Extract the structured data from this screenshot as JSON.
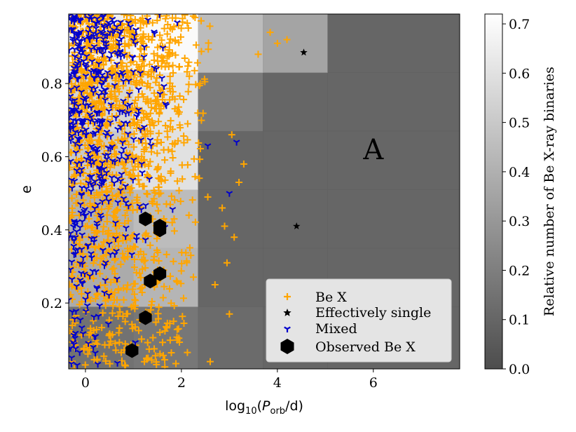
{
  "chart_data": {
    "type": "scatter",
    "xlabel": "log10(Porb/d)",
    "xlabel_parts": {
      "prefix": "log",
      "base": "10",
      "open": "(",
      "var": "P",
      "sub": "orb",
      "unit": "/d)"
    },
    "ylabel": "e",
    "xlim": [
      -0.35,
      7.8
    ],
    "ylim": [
      0.02,
      0.99
    ],
    "xticks": [
      0,
      2,
      4,
      6
    ],
    "xtick_labels": [
      "0",
      "2",
      "4",
      "6"
    ],
    "yticks": [
      0.2,
      0.4,
      0.6,
      0.8
    ],
    "ytick_labels": [
      "0.2",
      "0.4",
      "0.6",
      "0.8"
    ],
    "annotation": "A",
    "annotation_pos": {
      "x": 6.0,
      "y": 0.62
    },
    "legend_position": "lower-right",
    "colorbar": {
      "label": "Relative number of Be X-ray binaries",
      "range": [
        0.0,
        0.72
      ],
      "ticks": [
        0.0,
        0.1,
        0.2,
        0.3,
        0.4,
        0.5,
        0.6,
        0.7
      ],
      "tick_labels": [
        "0.0",
        "0.1",
        "0.2",
        "0.3",
        "0.4",
        "0.5",
        "0.6",
        "0.7"
      ]
    },
    "heatmap": {
      "x_edges": [
        -0.35,
        1.0,
        2.35,
        3.7,
        5.05,
        7.8
      ],
      "y_edges": [
        0.02,
        0.19,
        0.35,
        0.51,
        0.67,
        0.83,
        0.99
      ],
      "values": [
        [
          0.15,
          0.17,
          0.12,
          0.1,
          0.1
        ],
        [
          0.38,
          0.42,
          0.1,
          0.1,
          0.1
        ],
        [
          0.4,
          0.45,
          0.1,
          0.1,
          0.1
        ],
        [
          0.5,
          0.6,
          0.1,
          0.1,
          0.1
        ],
        [
          0.55,
          0.62,
          0.18,
          0.1,
          0.1
        ],
        [
          0.65,
          0.7,
          0.45,
          0.35,
          0.1
        ]
      ]
    },
    "series": [
      {
        "name": "Be X",
        "marker": "plus",
        "color": "#ffa500",
        "count": 1400,
        "seed": 7,
        "density": "upper-left (e decreasing with log P)",
        "extra_points": [
          [
            2.6,
            0.04
          ],
          [
            2.9,
            0.41
          ],
          [
            3.1,
            0.38
          ],
          [
            3.2,
            0.53
          ],
          [
            2.7,
            0.25
          ],
          [
            3.0,
            0.17
          ],
          [
            2.85,
            0.46
          ],
          [
            3.3,
            0.58
          ],
          [
            2.55,
            0.49
          ],
          [
            4.0,
            0.91
          ],
          [
            3.85,
            0.94
          ],
          [
            4.2,
            0.92
          ],
          [
            3.6,
            0.88
          ],
          [
            2.95,
            0.31
          ],
          [
            3.05,
            0.66
          ]
        ]
      },
      {
        "name": "Effectively single",
        "marker": "star",
        "color": "#000000",
        "points": [
          [
            4.55,
            0.885
          ],
          [
            4.4,
            0.41
          ]
        ]
      },
      {
        "name": "Mixed",
        "marker": "tri_down",
        "color": "#0000cc",
        "count": 480,
        "seed": 11,
        "density": "left edge, mostly high e",
        "extra_points": [
          [
            3.15,
            0.64
          ],
          [
            3.0,
            0.5
          ],
          [
            2.55,
            0.63
          ]
        ]
      },
      {
        "name": "Observed Be X",
        "marker": "hexagon",
        "color": "#000000",
        "points": [
          [
            1.25,
            0.43
          ],
          [
            1.55,
            0.41
          ],
          [
            1.55,
            0.4
          ],
          [
            1.55,
            0.28
          ],
          [
            1.35,
            0.26
          ],
          [
            1.25,
            0.16
          ],
          [
            0.97,
            0.07
          ]
        ]
      }
    ]
  }
}
